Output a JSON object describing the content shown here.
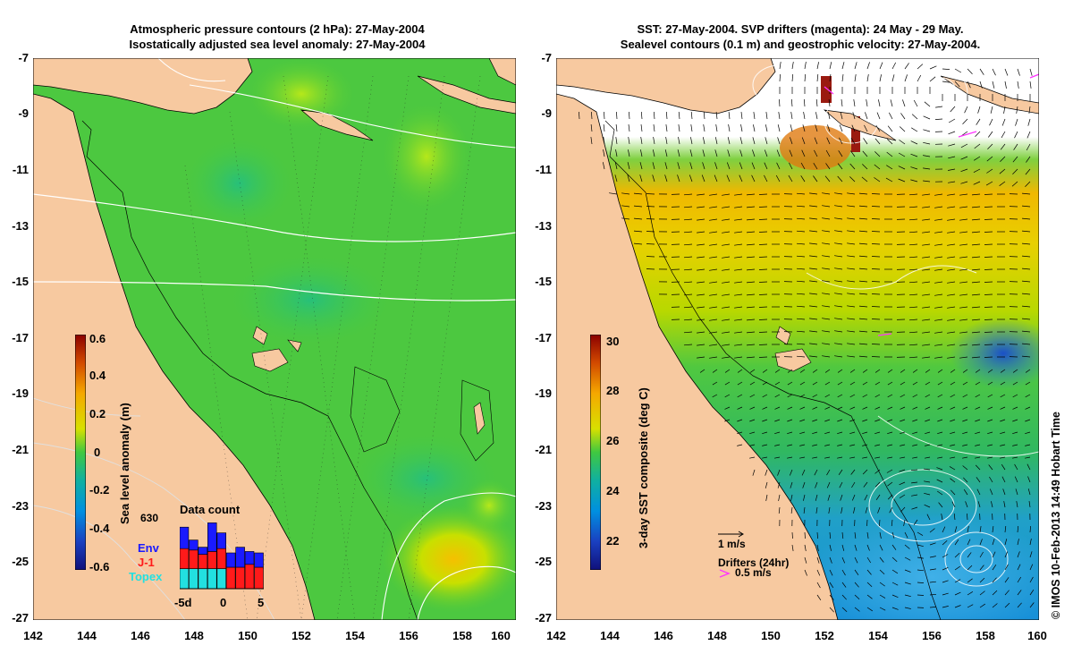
{
  "left_panel": {
    "title_line1": "Atmospheric pressure contours (2 hPa): 27-May-2004",
    "title_line2": "Isostatically adjusted sea level anomaly: 27-May-2004",
    "y_ticks": [
      "-7",
      "-9",
      "-11",
      "-13",
      "-15",
      "-17",
      "-19",
      "-21",
      "-23",
      "-25",
      "-27"
    ],
    "x_ticks": [
      "142",
      "144",
      "146",
      "148",
      "150",
      "152",
      "154",
      "156",
      "158",
      "160"
    ],
    "colorbar": {
      "label": "Sea level anomaly (m)",
      "ticks": [
        "0.6",
        "0.4",
        "0.2",
        "0",
        "-0.2",
        "-0.4",
        "-0.6"
      ],
      "range": [
        -0.6,
        0.6
      ]
    },
    "data_count": {
      "title": "Data count",
      "max_label": "630",
      "x_ticks": [
        "-5d",
        "0",
        "5"
      ],
      "legend": [
        {
          "name": "Env",
          "color": "#1a1aff"
        },
        {
          "name": "J-1",
          "color": "#ff1a1a"
        },
        {
          "name": "Topex",
          "color": "#22e0e0"
        }
      ],
      "bars": [
        {
          "topex": 0.28,
          "j1": 0.28,
          "env": 0.3
        },
        {
          "topex": 0.28,
          "j1": 0.26,
          "env": 0.14
        },
        {
          "topex": 0.28,
          "j1": 0.2,
          "env": 0.1
        },
        {
          "topex": 0.28,
          "j1": 0.24,
          "env": 0.4
        },
        {
          "topex": 0.28,
          "j1": 0.28,
          "env": 0.22
        },
        {
          "topex": 0.0,
          "j1": 0.3,
          "env": 0.2
        },
        {
          "topex": 0.0,
          "j1": 0.3,
          "env": 0.28
        },
        {
          "topex": 0.0,
          "j1": 0.34,
          "env": 0.18
        },
        {
          "topex": 0.0,
          "j1": 0.3,
          "env": 0.2
        }
      ]
    }
  },
  "right_panel": {
    "title_line1": "SST: 27-May-2004. SVP drifters (magenta): 24 May - 29 May.",
    "title_line2": "Sealevel contours (0.1 m) and geostrophic velocity: 27-May-2004.",
    "y_ticks": [
      "-7",
      "-9",
      "-11",
      "-13",
      "-15",
      "-17",
      "-19",
      "-21",
      "-23",
      "-25",
      "-27"
    ],
    "x_ticks": [
      "142",
      "144",
      "146",
      "148",
      "150",
      "152",
      "154",
      "156",
      "158",
      "160"
    ],
    "colorbar": {
      "label": "3-day SST composite (deg C)",
      "ticks": [
        "30",
        "28",
        "26",
        "24",
        "22"
      ],
      "range": [
        21,
        30.5
      ]
    },
    "velocity_scale_label": "1 m/s",
    "drifters_label": "Drifters (24hr)",
    "drifter_speed_label": "0.5 m/s"
  },
  "credit": "© IMOS 10-Feb-2013 14:49 Hobart Time",
  "colors": {
    "land": "#f7c9a0",
    "sea_green": "#3fcc3a",
    "drifter": "#ff33ff"
  }
}
